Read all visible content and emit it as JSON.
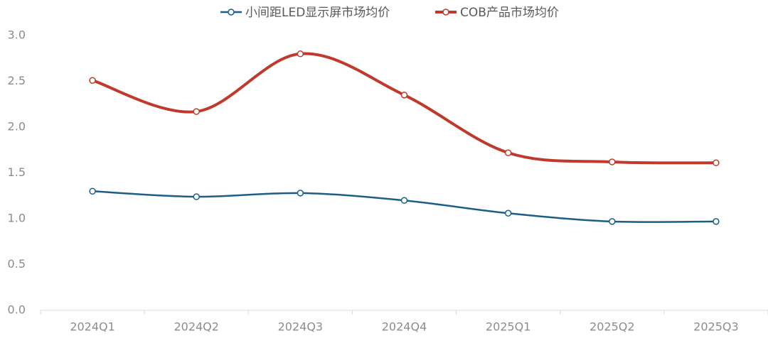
{
  "chart_data": {
    "type": "line",
    "categories": [
      "2024Q1",
      "2024Q2",
      "2024Q3",
      "2024Q4",
      "2025Q1",
      "2025Q2",
      "2025Q3"
    ],
    "series": [
      {
        "name": "小间距LED显示屏市场均价",
        "color": "#1b5e86",
        "values": [
          1.3,
          1.24,
          1.28,
          1.2,
          1.06,
          0.97,
          0.97
        ]
      },
      {
        "name": "COB产品市场均价",
        "color": "#c0392b",
        "values": [
          2.51,
          2.17,
          2.8,
          2.35,
          1.72,
          1.62,
          1.61
        ]
      }
    ],
    "ylim": [
      0,
      3
    ],
    "yticks": [
      {
        "value": 0,
        "label": "0.0"
      },
      0.5,
      {
        "value": 1,
        "label": "1.0"
      },
      1.5,
      {
        "value": 2,
        "label": "2.0"
      },
      2.5,
      {
        "value": 3,
        "label": "3.0"
      }
    ],
    "smooth": true,
    "grid": false,
    "legend": "top"
  }
}
